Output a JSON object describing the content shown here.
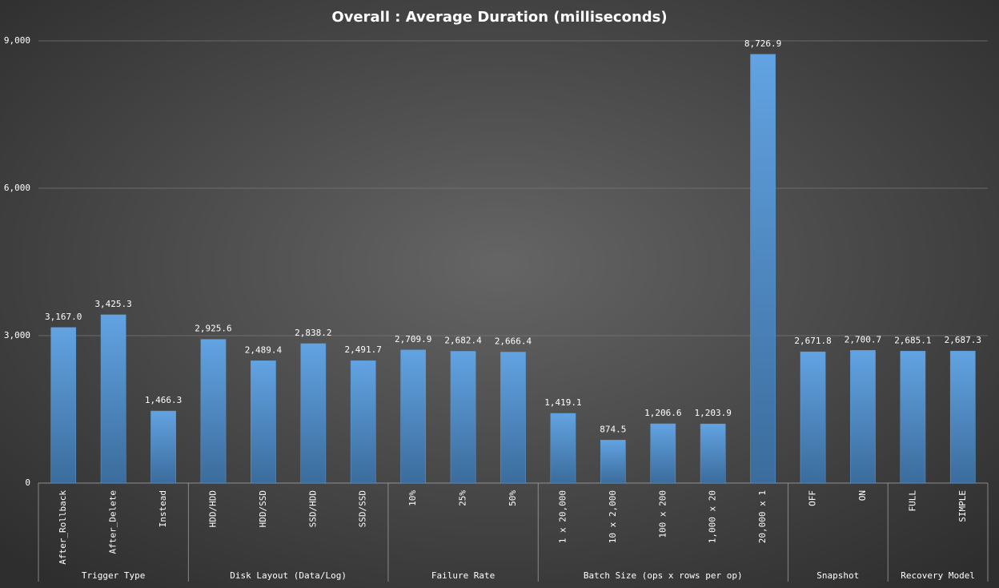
{
  "chart_data": {
    "type": "bar",
    "title": "Overall : Average Duration (milliseconds)",
    "categories": [
      "After_Rollback",
      "After_Delete",
      "Instead",
      "HDD/HDD",
      "HDD/SSD",
      "SSD/HDD",
      "SSD/SSD",
      "10%",
      "25%",
      "50%",
      "1 x 20,000",
      "10 x 2,000",
      "100 x 200",
      "1,000 x 20",
      "20,000 x 1",
      "OFF",
      "ON",
      "FULL",
      "SIMPLE"
    ],
    "values": [
      3167.0,
      3425.3,
      1466.3,
      2925.6,
      2489.4,
      2838.2,
      2491.7,
      2709.9,
      2682.4,
      2666.4,
      1419.1,
      874.5,
      1206.6,
      1203.9,
      8726.9,
      2671.8,
      2700.7,
      2685.1,
      2687.3
    ],
    "value_labels": [
      "3,167.0",
      "3,425.3",
      "1,466.3",
      "2,925.6",
      "2,489.4",
      "2,838.2",
      "2,491.7",
      "2,709.9",
      "2,682.4",
      "2,666.4",
      "1,419.1",
      "874.5",
      "1,206.6",
      "1,203.9",
      "8,726.9",
      "2,671.8",
      "2,700.7",
      "2,685.1",
      "2,687.3"
    ],
    "groups": [
      {
        "name": "Trigger Type",
        "count": 3
      },
      {
        "name": "Disk Layout (Data/Log)",
        "count": 4
      },
      {
        "name": "Failure Rate",
        "count": 3
      },
      {
        "name": "Batch Size (ops x rows per op)",
        "count": 5
      },
      {
        "name": "Snapshot",
        "count": 2
      },
      {
        "name": "Recovery Model",
        "count": 2
      }
    ],
    "color": "#5b9bd5",
    "ylim": [
      0,
      9000
    ],
    "yticks": [
      0,
      {
        "value": 3000,
        "label": "3,000"
      },
      {
        "value": 6000,
        "label": "6,000"
      },
      {
        "value": 9000,
        "label": "9,000"
      }
    ],
    "grid": true
  }
}
